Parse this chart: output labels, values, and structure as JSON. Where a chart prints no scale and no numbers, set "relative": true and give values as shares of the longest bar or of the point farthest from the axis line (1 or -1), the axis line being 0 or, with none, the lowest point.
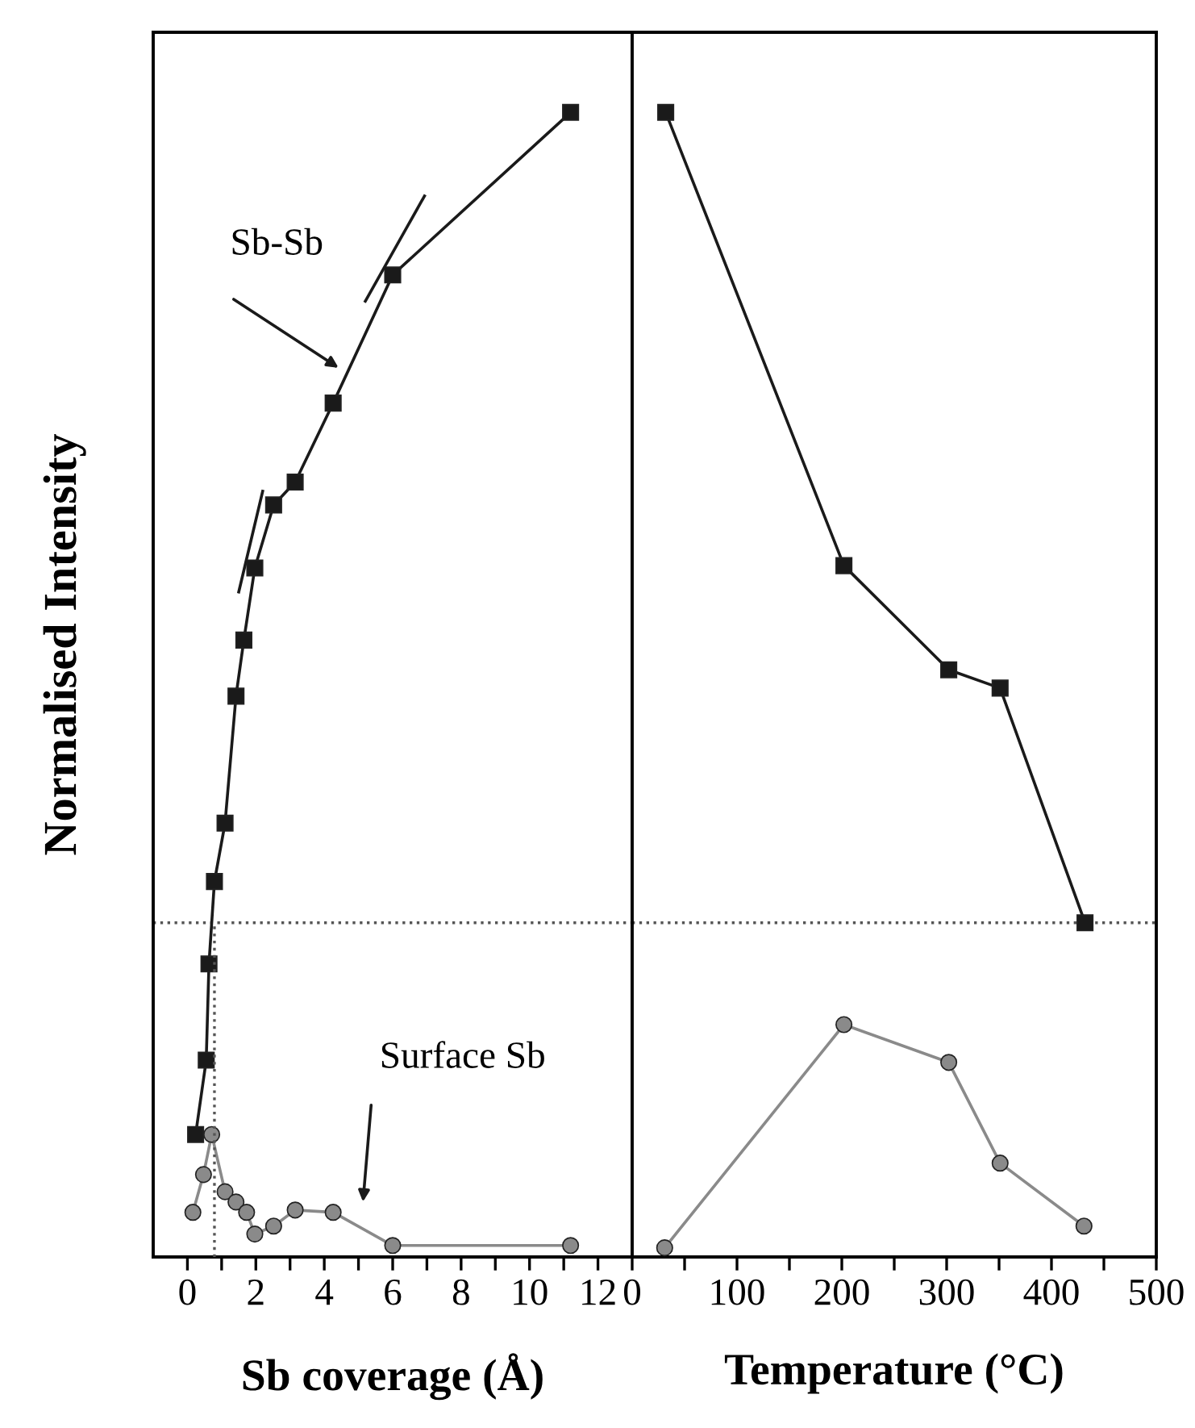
{
  "chart_data": [
    {
      "type": "line",
      "xlabel": "Sb coverage (Å)",
      "ylabel": "Normalised Intensity",
      "relative": true,
      "xlim": [
        -1,
        13
      ],
      "xticks": [
        0,
        {
          "value": 1,
          "label": null
        },
        2,
        {
          "value": 3,
          "label": null
        },
        4,
        {
          "value": 5,
          "label": null
        },
        6,
        {
          "value": 7,
          "label": null
        },
        8,
        {
          "value": 9,
          "label": null
        },
        10,
        {
          "value": 11,
          "label": null
        },
        12
      ],
      "grid": false,
      "legend": false,
      "line_style": "solid",
      "series": [
        {
          "color": "#1a1a1a",
          "marker": "square",
          "x": [
            0.24,
            0.55,
            0.63,
            0.79,
            1.1,
            1.42,
            1.65,
            1.97,
            2.52,
            3.15,
            4.26,
            6.0,
            11.2
          ],
          "values": [
            0.107,
            0.172,
            0.256,
            0.328,
            0.379,
            0.49,
            0.539,
            0.602,
            0.657,
            0.677,
            0.746,
            0.858,
            1.0
          ]
        },
        {
          "color": "#8a8a8a",
          "marker": "circle",
          "x": [
            0.16,
            0.47,
            0.71,
            1.1,
            1.42,
            1.73,
            1.97,
            2.52,
            3.15,
            4.26,
            6.0,
            11.2
          ],
          "values": [
            0.039,
            0.072,
            0.107,
            0.057,
            0.048,
            0.039,
            0.02,
            0.027,
            0.041,
            0.039,
            0.01,
            0.01
          ]
        },
        {
          "type": "line",
          "color": "#1a1a1a",
          "marker": "none",
          "x": [
            5.2,
            6.93
          ],
          "values": [
            0.835,
            0.927
          ]
        },
        {
          "type": "line",
          "color": "#1a1a1a",
          "marker": "none",
          "x": [
            1.5,
            2.2
          ],
          "values": [
            0.581,
            0.669
          ]
        },
        {
          "type": "line",
          "color": "#555555",
          "marker": "none",
          "line_style": "dotted",
          "x": [
            0.79,
            0.79
          ],
          "values": [
            0,
            0.292
          ]
        }
      ],
      "ref_lines": [
        {
          "axis": "y",
          "value": 0.292,
          "color": "#555555",
          "line_style": "dotted"
        }
      ],
      "annotations": [
        "Sb-Sb",
        "Surface Sb"
      ]
    },
    {
      "type": "line",
      "xlabel": "Temperature (°C)",
      "relative": true,
      "xlim": [
        0,
        500
      ],
      "xticks": [
        0,
        {
          "value": 50,
          "label": null
        },
        100,
        {
          "value": 150,
          "label": null
        },
        200,
        {
          "value": 250,
          "label": null
        },
        300,
        {
          "value": 350,
          "label": null
        },
        400,
        {
          "value": 450,
          "label": null
        },
        500
      ],
      "grid": false,
      "legend": false,
      "line_style": "solid",
      "series": [
        {
          "color": "#1a1a1a",
          "marker": "square",
          "x": [
            32,
            202,
            302,
            351,
            432
          ],
          "values": [
            1.0,
            0.604,
            0.513,
            0.497,
            0.292
          ]
        },
        {
          "color": "#8a8a8a",
          "marker": "circle",
          "x": [
            31,
            202,
            302,
            351,
            431
          ],
          "values": [
            0.008,
            0.203,
            0.17,
            0.082,
            0.027
          ]
        }
      ],
      "ref_lines": [
        {
          "axis": "y",
          "value": 0.292,
          "color": "#555555",
          "line_style": "dotted"
        }
      ]
    }
  ]
}
